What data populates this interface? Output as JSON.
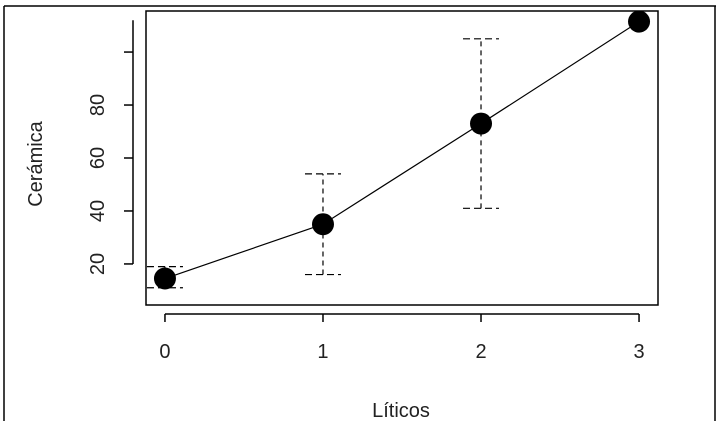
{
  "chart_data": {
    "type": "line",
    "title": "",
    "xlabel": "Líticos",
    "ylabel": "Cerámica",
    "x": [
      0,
      1,
      2,
      3
    ],
    "series": [
      {
        "values": [
          14.5,
          35,
          73,
          111.5
        ],
        "error_low": [
          11,
          16,
          41,
          111.5
        ],
        "error_high": [
          19,
          54,
          105,
          111.5
        ]
      }
    ],
    "x_ticks": [
      "0",
      "1",
      "2",
      "3"
    ],
    "y_ticks": [
      "20",
      "40",
      "60",
      "80"
    ],
    "xlim": [
      -0.12,
      3.12
    ],
    "ylim": [
      4.5,
      115.5
    ],
    "grid": false,
    "colors": {
      "point": "#000000",
      "line": "#000000",
      "error": "#000000"
    }
  }
}
